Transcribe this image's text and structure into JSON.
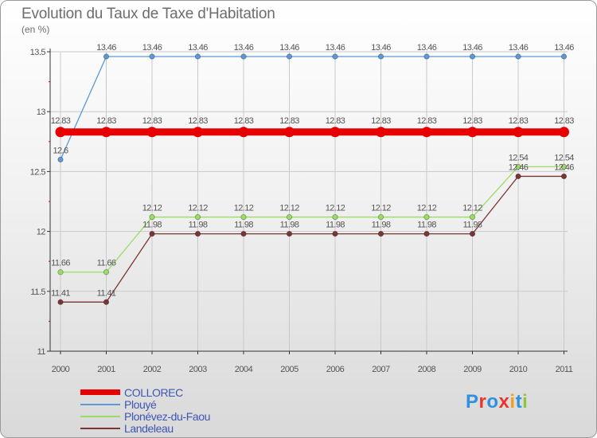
{
  "title": "Evolution du Taux de Taxe d'Habitation",
  "subtitle": "(en %)",
  "logo": {
    "letters": [
      "P",
      "r",
      "o",
      "x",
      "i",
      "t",
      "i"
    ],
    "colors": [
      "#2f8fe0",
      "#e8352f",
      "#2f8fe0",
      "#e8352f",
      "#f0a020",
      "#2f8fe0",
      "#8cc63e"
    ]
  },
  "chart_data": {
    "type": "line",
    "title": "Evolution du Taux de Taxe d'Habitation",
    "ylabel": "(en %)",
    "xlabel": "",
    "x": [
      "2000",
      "2001",
      "2002",
      "2003",
      "2004",
      "2005",
      "2006",
      "2007",
      "2008",
      "2009",
      "2010",
      "2011"
    ],
    "ylim": [
      11,
      13.5
    ],
    "yticks": [
      "11",
      "11.5",
      "12",
      "12.5",
      "13",
      "13.5"
    ],
    "series": [
      {
        "name": "Plouyé",
        "color": "#5b9ad6",
        "values": [
          12.6,
          13.46,
          13.46,
          13.46,
          13.46,
          13.46,
          13.46,
          13.46,
          13.46,
          13.46,
          13.46,
          13.46
        ],
        "labels": [
          "12.6",
          "13.46",
          "13.46",
          "13.46",
          "13.46",
          "13.46",
          "13.46",
          "13.46",
          "13.46",
          "13.46",
          "13.46",
          "13.46"
        ]
      },
      {
        "name": "COLLOREC",
        "color": "#e60000",
        "values": [
          12.83,
          12.83,
          12.83,
          12.83,
          12.83,
          12.83,
          12.83,
          12.83,
          12.83,
          12.83,
          12.83,
          12.83
        ],
        "labels": [
          "12.83",
          "12.83",
          "12.83",
          "12.83",
          "12.83",
          "12.83",
          "12.83",
          "12.83",
          "12.83",
          "12.83",
          "12.83",
          "12.83"
        ]
      },
      {
        "name": "Plonévez-du-Faou",
        "color": "#99dd66",
        "values": [
          11.66,
          11.66,
          12.12,
          12.12,
          12.12,
          12.12,
          12.12,
          12.12,
          12.12,
          12.12,
          12.54,
          12.54
        ],
        "labels": [
          "11.66",
          "11.66",
          "12.12",
          "12.12",
          "12.12",
          "12.12",
          "12.12",
          "12.12",
          "12.12",
          "12.12",
          "12.54",
          "12.54"
        ]
      },
      {
        "name": "Landeleau",
        "color": "#7a3535",
        "values": [
          11.41,
          11.41,
          11.98,
          11.98,
          11.98,
          11.98,
          11.98,
          11.98,
          11.98,
          11.98,
          12.46,
          12.46
        ],
        "labels": [
          "11.41",
          "11.41",
          "11.98",
          "11.98",
          "11.98",
          "11.98",
          "11.98",
          "11.98",
          "11.98",
          "11.98",
          "12.46",
          "12.46"
        ]
      }
    ],
    "legend": [
      {
        "name": "COLLOREC",
        "color": "#e60000"
      },
      {
        "name": "Plouyé",
        "color": "#5b9ad6"
      },
      {
        "name": "Plonévez-du-Faou",
        "color": "#99dd66"
      },
      {
        "name": "Landeleau",
        "color": "#7a3535"
      }
    ],
    "legend_position": "bottom-left"
  }
}
